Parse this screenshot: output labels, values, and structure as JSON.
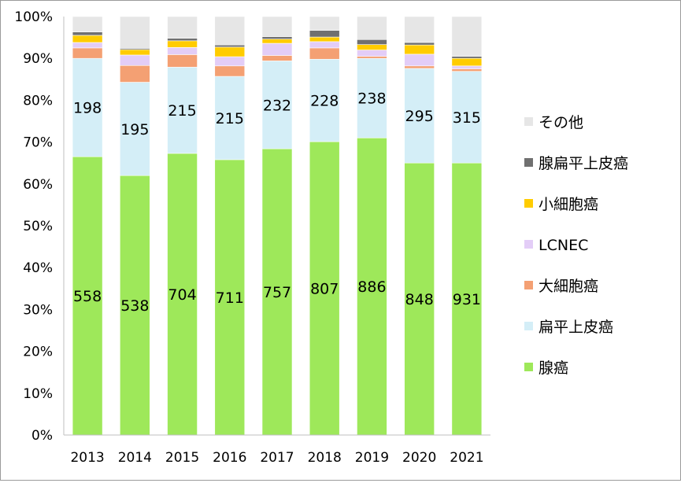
{
  "chart_data": {
    "type": "bar",
    "stacked": true,
    "normalized": true,
    "categories": [
      "2013",
      "2014",
      "2015",
      "2016",
      "2017",
      "2018",
      "2019",
      "2020",
      "2021"
    ],
    "ylim": [
      0,
      100
    ],
    "yticks": [
      "0%",
      "10%",
      "20%",
      "30%",
      "40%",
      "50%",
      "60%",
      "70%",
      "80%",
      "90%",
      "100%"
    ],
    "grid": false,
    "legend_position": "right",
    "series": [
      {
        "name": "腺癌",
        "color": "#9ee85a",
        "values": [
          66.5,
          62.0,
          67.3,
          65.8,
          68.4,
          70.1,
          71.0,
          65.0,
          65.0
        ],
        "labels": [
          "558",
          "538",
          "704",
          "711",
          "757",
          "807",
          "886",
          "848",
          "931"
        ]
      },
      {
        "name": "扁平上皮癌",
        "color": "#d4eef7",
        "values": [
          23.5,
          22.3,
          20.6,
          19.9,
          21.0,
          19.7,
          19.0,
          22.6,
          21.9
        ],
        "labels": [
          "198",
          "195",
          "215",
          "215",
          "232",
          "228",
          "238",
          "295",
          "315"
        ]
      },
      {
        "name": "大細胞癌",
        "color": "#f4a073",
        "values": [
          2.5,
          4.0,
          3.0,
          2.5,
          1.3,
          2.7,
          0.5,
          0.6,
          0.6
        ]
      },
      {
        "name": "LCNEC",
        "color": "#e3cdf7",
        "values": [
          1.3,
          2.5,
          1.7,
          2.2,
          2.9,
          1.5,
          1.5,
          2.8,
          0.7
        ]
      },
      {
        "name": "小細胞癌",
        "color": "#ffcc00",
        "values": [
          1.7,
          1.3,
          1.6,
          2.3,
          1.0,
          1.1,
          1.3,
          2.2,
          1.8
        ]
      },
      {
        "name": "腺扁平上皮癌",
        "color": "#707070",
        "values": [
          0.8,
          0.3,
          0.6,
          0.5,
          0.6,
          1.6,
          1.2,
          0.6,
          0.5
        ]
      },
      {
        "name": "その他",
        "color": "#e6e6e6",
        "values": [
          3.7,
          7.6,
          5.2,
          6.8,
          4.8,
          3.3,
          5.5,
          6.2,
          9.5
        ]
      }
    ],
    "legend_order": [
      "その他",
      "腺扁平上皮癌",
      "小細胞癌",
      "LCNEC",
      "大細胞癌",
      "扁平上皮癌",
      "腺癌"
    ]
  }
}
